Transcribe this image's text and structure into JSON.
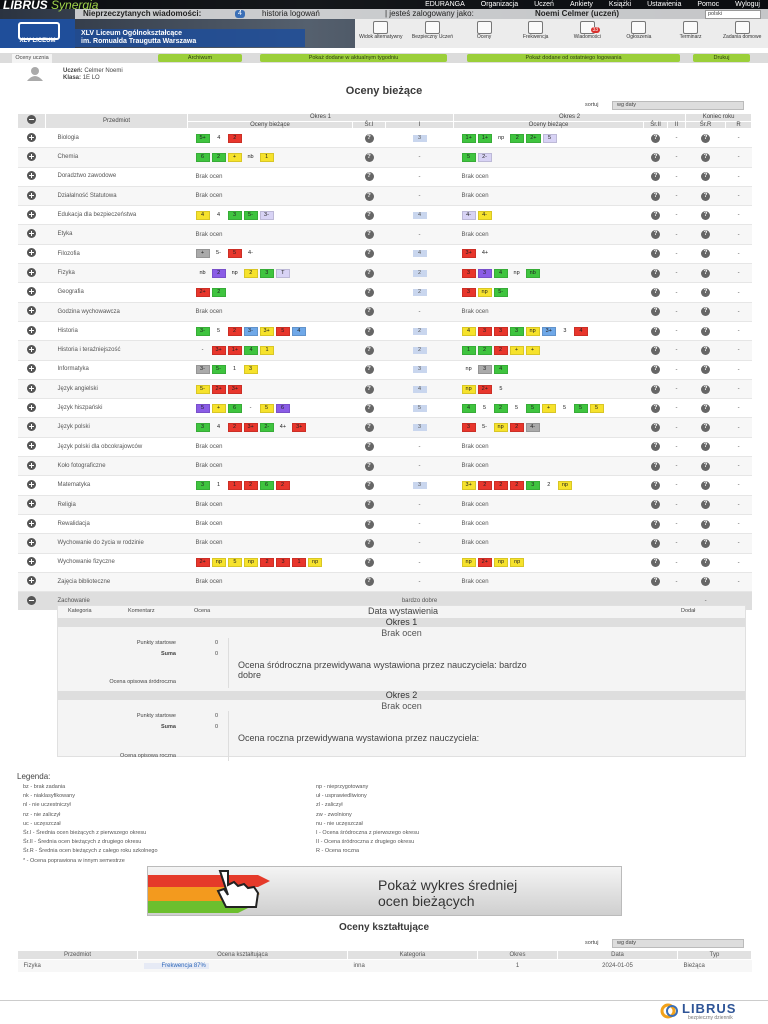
{
  "header": {
    "brand": "LIBRUS",
    "brand_sub": "Synergia",
    "menu": [
      "EDURANGA",
      "Organizacja",
      "Uczeń",
      "Ankiety",
      "Książki",
      "Ustawienia",
      "Pomoc",
      "Wyloguj"
    ],
    "messages_label": "Nieprzeczytanych wiadomości:",
    "messages_count": "4",
    "login_history": "historia logowań",
    "logged_as": "| jesteś zalogowany jako:",
    "user": "Noemi Celmer (uczeń)",
    "language": "polski",
    "school_logo": "XLV LICEUM",
    "school_name": [
      "XLV Liceum Ogólnokształcące",
      "im. Romualda Traugutta Warszawa"
    ],
    "nav": [
      {
        "label": "Widok alternatywny"
      },
      {
        "label": "Bezpieczny Uczeń"
      },
      {
        "label": "Oceny"
      },
      {
        "label": "Frekwencja"
      },
      {
        "label": "Wiadomości",
        "badge": "33"
      },
      {
        "label": "Ogłoszenia"
      },
      {
        "label": "Terminarz"
      },
      {
        "label": "Zadania domowe"
      }
    ]
  },
  "toolbar": {
    "tab": "Oceny ucznia",
    "buttons": [
      "Archiwum",
      "Pokaż dodane w aktualnym tygodniu",
      "Pokaż dodane od ostatniego logowania",
      "Drukuj"
    ]
  },
  "student": {
    "name_label": "Uczeń:",
    "name": "Celmer Noemi",
    "class_label": "Klasa:",
    "class": "1E LO"
  },
  "grades": {
    "title": "Oceny bieżące",
    "sort_label": "sortuj",
    "sort_value": "wg daty",
    "headers": {
      "subject": "Przedmiot",
      "period1": "Okres 1",
      "period2": "Okres 2",
      "year_end": "Koniec roku",
      "grades1": "Oceny bieżące",
      "sr1": "Śr.I",
      "I": "I",
      "grades2": "Oceny bieżące",
      "sr2": "Śr.II",
      "II": "II",
      "srR": "Śr.R",
      "R": "R"
    },
    "rows": [
      {
        "subject": "Biologia",
        "grades1": [
          {
            "text": "5+",
            "color": "#3fc43f"
          },
          {
            "text": "4"
          },
          {
            "text": "2",
            "color": "#e8362c"
          }
        ],
        "sr1": "?",
        "I": "3",
        "grades2": [
          {
            "text": "1+",
            "color": "#3fc43f"
          },
          {
            "text": "1+",
            "color": "#3fc43f"
          },
          {
            "text": "np"
          },
          {
            "text": "2",
            "color": "#3fc43f"
          },
          {
            "text": "2+",
            "color": "#3fc43f"
          },
          {
            "text": "5",
            "color": "#d8d3f5"
          }
        ],
        "sr2": "?",
        "II": "-",
        "srR": "?",
        "R": "-"
      },
      {
        "subject": "Chemia",
        "grades1": [
          {
            "text": "6",
            "color": "#3fc43f"
          },
          {
            "text": "2",
            "color": "#3fc43f"
          },
          {
            "text": "+",
            "color": "#f6e22c"
          },
          {
            "text": "nb"
          },
          {
            "text": "1",
            "color": "#f6e22c"
          }
        ],
        "sr1": "?",
        "I": "-",
        "grades2": [
          {
            "text": "5",
            "color": "#3fc43f"
          },
          {
            "text": "2-",
            "color": "#d8d3f5"
          }
        ],
        "sr2": "?",
        "II": "-",
        "srR": "?",
        "R": "-"
      },
      {
        "subject": "Doradztwo zawodowe",
        "grades1": "Brak ocen",
        "sr1": "?",
        "I": "-",
        "grades2": "Brak ocen",
        "sr2": "?",
        "II": "-",
        "srR": "?",
        "R": "-"
      },
      {
        "subject": "Działalność Statutowa",
        "grades1": "Brak ocen",
        "sr1": "?",
        "I": "-",
        "grades2": "Brak ocen",
        "sr2": "?",
        "II": "-",
        "srR": "?",
        "R": "-"
      },
      {
        "subject": "Edukacja dla bezpieczeństwa",
        "grades1": [
          {
            "text": "4",
            "color": "#f6e22c"
          },
          {
            "text": "4"
          },
          {
            "text": "3",
            "color": "#3fc43f"
          },
          {
            "text": "5-",
            "color": "#3fc43f"
          },
          {
            "text": "3-",
            "color": "#d8d3f5"
          }
        ],
        "sr1": "?",
        "I": "4",
        "grades2": [
          {
            "text": "4-",
            "color": "#d8d3f5"
          },
          {
            "text": "4-",
            "color": "#f6e22c"
          }
        ],
        "sr2": "?",
        "II": "-",
        "srR": "?",
        "R": "-"
      },
      {
        "subject": "Etyka",
        "grades1": "Brak ocen",
        "sr1": "?",
        "I": "-",
        "grades2": "Brak ocen",
        "sr2": "?",
        "II": "-",
        "srR": "?",
        "R": "-"
      },
      {
        "subject": "Filozofia",
        "grades1": [
          {
            "text": "+",
            "color": "#aaaaaa"
          },
          {
            "text": "5-"
          },
          {
            "text": "5",
            "color": "#e8362c"
          },
          {
            "text": "4-"
          }
        ],
        "sr1": "?",
        "I": "4",
        "grades2": [
          {
            "text": "3+",
            "color": "#e8362c"
          },
          {
            "text": "4+"
          }
        ],
        "sr2": "?",
        "II": "-",
        "srR": "?",
        "R": "-"
      },
      {
        "subject": "Fizyka",
        "grades1": [
          {
            "text": "nb"
          },
          {
            "text": "2",
            "color": "#8a5ce6"
          },
          {
            "text": "np"
          },
          {
            "text": "2",
            "color": "#f6e22c"
          },
          {
            "text": "3",
            "color": "#3fc43f"
          },
          {
            "text": "T",
            "color": "#d8d3f5"
          }
        ],
        "sr1": "?",
        "I": "2",
        "grades2": [
          {
            "text": "3",
            "color": "#e8362c"
          },
          {
            "text": "3",
            "color": "#8a5ce6"
          },
          {
            "text": "4",
            "color": "#3fc43f"
          },
          {
            "text": "np"
          },
          {
            "text": "nb",
            "color": "#3fc43f"
          }
        ],
        "sr2": "?",
        "II": "-",
        "srR": "?",
        "R": "-"
      },
      {
        "subject": "Geografia",
        "grades1": [
          {
            "text": "2+",
            "color": "#e8362c"
          },
          {
            "text": "2",
            "color": "#3fc43f"
          }
        ],
        "sr1": "?",
        "I": "2",
        "grades2": [
          {
            "text": "3",
            "color": "#e8362c"
          },
          {
            "text": "np",
            "color": "#f6e22c"
          },
          {
            "text": "5-",
            "color": "#3fc43f"
          }
        ],
        "sr2": "?",
        "II": "-",
        "srR": "?",
        "R": "-"
      },
      {
        "subject": "Godzina wychowawcza",
        "grades1": "Brak ocen",
        "sr1": "?",
        "I": "-",
        "grades2": "Brak ocen",
        "sr2": "?",
        "II": "-",
        "srR": "?",
        "R": "-"
      },
      {
        "subject": "Historia",
        "grades1": [
          {
            "text": "3-",
            "color": "#3fc43f"
          },
          {
            "text": "5"
          },
          {
            "text": "2",
            "color": "#e8362c"
          },
          {
            "text": "3-",
            "color": "#6fa8e8"
          },
          {
            "text": "3+",
            "color": "#f6e22c"
          },
          {
            "text": "5",
            "color": "#e8362c"
          },
          {
            "text": "4",
            "color": "#6fa8e8"
          }
        ],
        "sr1": "?",
        "I": "2",
        "grades2": [
          {
            "text": "4",
            "color": "#f6e22c"
          },
          {
            "text": "3",
            "color": "#e8362c"
          },
          {
            "text": "3",
            "color": "#e8362c"
          },
          {
            "text": "3",
            "color": "#3fc43f"
          },
          {
            "text": "np",
            "color": "#f6e22c"
          },
          {
            "text": "3+",
            "color": "#6fa8e8"
          },
          {
            "text": "3"
          },
          {
            "text": "4",
            "color": "#e8362c"
          }
        ],
        "sr2": "?",
        "II": "-",
        "srR": "?",
        "R": "-"
      },
      {
        "subject": "Historia i teraźniejszość",
        "grades1": [
          {
            "text": "-"
          },
          {
            "text": "3+",
            "color": "#e8362c"
          },
          {
            "text": "1+",
            "color": "#e8362c"
          },
          {
            "text": "4",
            "color": "#3fc43f"
          },
          {
            "text": "1",
            "color": "#f6e22c"
          }
        ],
        "sr1": "?",
        "I": "2",
        "grades2": [
          {
            "text": "1",
            "color": "#3fc43f"
          },
          {
            "text": "2",
            "color": "#3fc43f"
          },
          {
            "text": "2",
            "color": "#e8362c"
          },
          {
            "text": "+",
            "color": "#f6e22c"
          },
          {
            "text": "+",
            "color": "#f6e22c"
          }
        ],
        "sr2": "?",
        "II": "-",
        "srR": "?",
        "R": "-"
      },
      {
        "subject": "Informatyka",
        "grades1": [
          {
            "text": "3-",
            "color": "#aaaaaa"
          },
          {
            "text": "5-",
            "color": "#3fc43f"
          },
          {
            "text": "1"
          },
          {
            "text": "3",
            "color": "#f6e22c"
          }
        ],
        "sr1": "?",
        "I": "3",
        "grades2": [
          {
            "text": "np"
          },
          {
            "text": "3",
            "color": "#aaaaaa"
          },
          {
            "text": "4",
            "color": "#3fc43f"
          }
        ],
        "sr2": "?",
        "II": "-",
        "srR": "?",
        "R": "-"
      },
      {
        "subject": "Język angielski",
        "grades1": [
          {
            "text": "5-",
            "color": "#f6e22c"
          },
          {
            "text": "2+",
            "color": "#e8362c"
          },
          {
            "text": "3+",
            "color": "#e8362c"
          }
        ],
        "sr1": "?",
        "I": "4",
        "grades2": [
          {
            "text": "np",
            "color": "#f6e22c"
          },
          {
            "text": "2+",
            "color": "#e8362c"
          },
          {
            "text": "5"
          }
        ],
        "sr2": "?",
        "II": "-",
        "srR": "?",
        "R": "-"
      },
      {
        "subject": "Język hiszpański",
        "grades1": [
          {
            "text": "5",
            "color": "#8a5ce6"
          },
          {
            "text": "+",
            "color": "#f6e22c"
          },
          {
            "text": "6",
            "color": "#3fc43f"
          },
          {
            "text": "-"
          },
          {
            "text": "5",
            "color": "#f6e22c"
          },
          {
            "text": "6",
            "color": "#8a5ce6"
          }
        ],
        "sr1": "?",
        "I": "5",
        "grades2": [
          {
            "text": "4",
            "color": "#3fc43f"
          },
          {
            "text": "5"
          },
          {
            "text": "2",
            "color": "#3fc43f"
          },
          {
            "text": "5"
          },
          {
            "text": "5",
            "color": "#3fc43f"
          },
          {
            "text": "+",
            "color": "#f6e22c"
          },
          {
            "text": "5"
          },
          {
            "text": "5",
            "color": "#3fc43f"
          },
          {
            "text": "5",
            "color": "#f6e22c"
          }
        ],
        "sr2": "?",
        "II": "-",
        "srR": "?",
        "R": "-"
      },
      {
        "subject": "Język polski",
        "grades1": [
          {
            "text": "3",
            "color": "#3fc43f"
          },
          {
            "text": "4"
          },
          {
            "text": "2",
            "color": "#e8362c"
          },
          {
            "text": "3+",
            "color": "#e8362c"
          },
          {
            "text": "2-",
            "color": "#3fc43f"
          },
          {
            "text": "4+"
          },
          {
            "text": "3+",
            "color": "#e8362c"
          }
        ],
        "sr1": "?",
        "I": "3",
        "grades2": [
          {
            "text": "3",
            "color": "#e8362c"
          },
          {
            "text": "5-"
          },
          {
            "text": "np",
            "color": "#f6e22c"
          },
          {
            "text": "2",
            "color": "#e8362c"
          },
          {
            "text": "4-",
            "color": "#aaaaaa"
          }
        ],
        "sr2": "?",
        "II": "-",
        "srR": "?",
        "R": "-"
      },
      {
        "subject": "Język polski dla obcokrajowców",
        "grades1": "Brak ocen",
        "sr1": "?",
        "I": "-",
        "grades2": "Brak ocen",
        "sr2": "?",
        "II": "-",
        "srR": "?",
        "R": "-"
      },
      {
        "subject": "Koło fotograficzne",
        "grades1": "Brak ocen",
        "sr1": "?",
        "I": "-",
        "grades2": "Brak ocen",
        "sr2": "?",
        "II": "-",
        "srR": "?",
        "R": "-"
      },
      {
        "subject": "Matematyka",
        "grades1": [
          {
            "text": "3",
            "color": "#3fc43f"
          },
          {
            "text": "1"
          },
          {
            "text": "1",
            "color": "#e8362c"
          },
          {
            "text": "2",
            "color": "#e8362c"
          },
          {
            "text": "6",
            "color": "#3fc43f"
          },
          {
            "text": "2",
            "color": "#e8362c"
          }
        ],
        "sr1": "?",
        "I": "3",
        "grades2": [
          {
            "text": "3+",
            "color": "#f6e22c"
          },
          {
            "text": "2",
            "color": "#e8362c"
          },
          {
            "text": "2",
            "color": "#e8362c"
          },
          {
            "text": "2",
            "color": "#e8362c"
          },
          {
            "text": "3",
            "color": "#3fc43f"
          },
          {
            "text": "2"
          },
          {
            "text": "np",
            "color": "#f6e22c"
          }
        ],
        "sr2": "?",
        "II": "-",
        "srR": "?",
        "R": "-"
      },
      {
        "subject": "Religia",
        "grades1": "Brak ocen",
        "sr1": "?",
        "I": "-",
        "grades2": "Brak ocen",
        "sr2": "?",
        "II": "-",
        "srR": "?",
        "R": "-"
      },
      {
        "subject": "Rewalidacja",
        "grades1": "Brak ocen",
        "sr1": "?",
        "I": "-",
        "grades2": "Brak ocen",
        "sr2": "?",
        "II": "-",
        "srR": "?",
        "R": "-"
      },
      {
        "subject": "Wychowanie do życia w rodzinie",
        "grades1": "Brak ocen",
        "sr1": "?",
        "I": "-",
        "grades2": "Brak ocen",
        "sr2": "?",
        "II": "-",
        "srR": "?",
        "R": "-"
      },
      {
        "subject": "Wychowanie fizyczne",
        "grades1": [
          {
            "text": "2+",
            "color": "#e8362c"
          },
          {
            "text": "np",
            "color": "#f6e22c"
          },
          {
            "text": "5",
            "color": "#f6e22c"
          },
          {
            "text": "np",
            "color": "#f6e22c"
          },
          {
            "text": "2",
            "color": "#e8362c"
          },
          {
            "text": "3",
            "color": "#e8362c"
          },
          {
            "text": "1",
            "color": "#e8362c"
          },
          {
            "text": "np",
            "color": "#f6e22c"
          }
        ],
        "sr1": "?",
        "I": "-",
        "grades2": [
          {
            "text": "np",
            "color": "#f6e22c"
          },
          {
            "text": "2+",
            "color": "#e8362c"
          },
          {
            "text": "np",
            "color": "#f6e22c"
          },
          {
            "text": "np",
            "color": "#f6e22c"
          }
        ],
        "sr2": "?",
        "II": "-",
        "srR": "?",
        "R": "-"
      },
      {
        "subject": "Zajęcia biblioteczne",
        "grades1": "Brak ocen",
        "sr1": "?",
        "I": "-",
        "grades2": "Brak ocen",
        "sr2": "?",
        "II": "-",
        "srR": "?",
        "R": "-"
      },
      {
        "subject": "Zachowanie",
        "I": "bardzo dobre",
        "srR": "-"
      }
    ]
  },
  "behavior_details": {
    "headers": [
      "Kategoria",
      "Komentarz",
      "Ocena",
      "Data wystawienia",
      "Dodał"
    ],
    "periods": [
      {
        "title": "Okres 1",
        "empty": "Brak ocen",
        "start_label": "Punkty startowe",
        "start_value": "0",
        "sum_label": "Suma",
        "sum_value": "0",
        "predicted": "Ocena śródroczna przewidywana wystawiona przez nauczyciela: bardzo dobre",
        "descriptive": "Ocena opisowa śródroczna"
      },
      {
        "title": "Okres 2",
        "empty": "Brak ocen",
        "start_label": "Punkty startowe",
        "start_value": "0",
        "sum_label": "Suma",
        "sum_value": "0",
        "predicted": "Ocena roczna przewidywana wystawiona przez nauczyciela:",
        "descriptive": "Ocena opisowa roczna"
      }
    ]
  },
  "legend": {
    "title": "Legenda:",
    "left": [
      "bz - brak zadania",
      "nk - niaklasyfikowany",
      "nl - nie uczestniczył",
      "nz - nie zaliczył",
      "uc - uczęszczał",
      "Śr.I - Średnia ocen bieżących z pierwszego okresu",
      "Śr.II - Średnia ocen bieżących z drugiego okresu",
      "Śr.R - Średnia ocen bieżących z całego roku szkolnego",
      "* - Ocena poprawiona w innym semestrze"
    ],
    "right": [
      "np - nieprzygotowany",
      "uł - usprawiedliwiony",
      "zl - zaliczył",
      "zw - zwolniony",
      "nu - nie uczęszczał",
      "I - Ocena śródroczna z pierwszego okresu",
      "II - Ocena śródroczna z drugiego okresu",
      "R - Ocena roczna"
    ]
  },
  "chart_button": {
    "line1": "Pokaż wykres średniej",
    "line2": "ocen bieżących"
  },
  "formative": {
    "title": "Oceny kształtujące",
    "sort_label": "sortuj",
    "sort_value": "wg daty",
    "headers": [
      "Przedmiot",
      "Ocena kształtująca",
      "Kategoria",
      "Okres",
      "Data",
      "Typ"
    ],
    "rows": [
      [
        "Fizyka",
        "Frekwencja 87%",
        "inna",
        "1",
        "2024-01-05",
        "Bieżąca"
      ]
    ]
  },
  "footer": {
    "brand": "LIBRUS",
    "tagline": "bezpieczny dziennik"
  }
}
